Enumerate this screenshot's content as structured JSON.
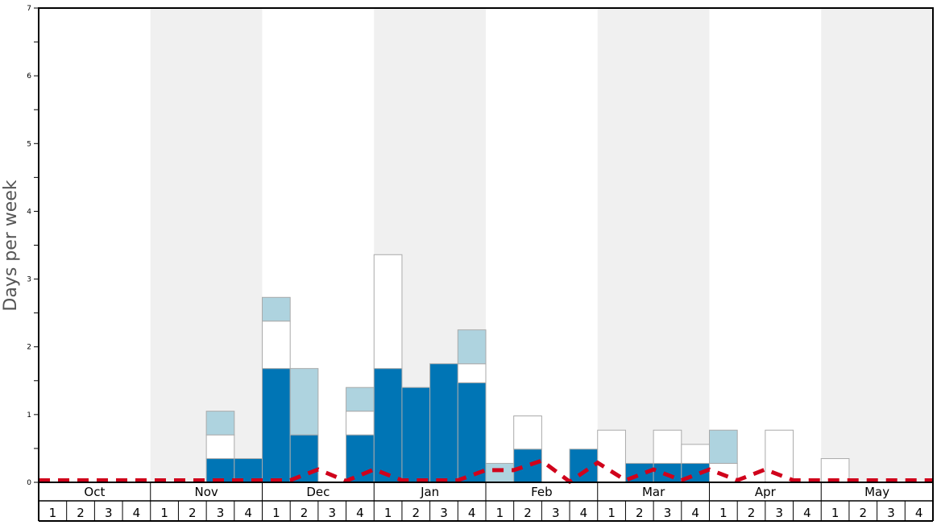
{
  "chart_data": {
    "type": "bar",
    "stacked": true,
    "ylabel": "Days per week",
    "ylim": [
      0,
      7
    ],
    "yticks": [
      "0",
      "1",
      "2",
      "3",
      "4",
      "5",
      "6",
      "7"
    ],
    "months": [
      "Oct",
      "Nov",
      "Dec",
      "Jan",
      "Feb",
      "Mar",
      "Apr",
      "May"
    ],
    "week_labels": [
      "1",
      "2",
      "3",
      "4"
    ],
    "colors": {
      "dark": "#0075b5",
      "white": "#ffffff",
      "light": "#aed3df",
      "line": "#d0021b",
      "shade": "#f0f0f0"
    },
    "series": [
      {
        "name": "dark",
        "values": [
          0,
          0,
          0,
          0,
          0,
          0,
          0.35,
          0.35,
          1.68,
          0.7,
          0,
          0.7,
          1.68,
          1.4,
          1.75,
          1.47,
          0,
          0.49,
          0,
          0.49,
          0,
          0.28,
          0.28,
          0.28,
          0,
          0,
          0,
          0,
          0,
          0,
          0,
          0
        ]
      },
      {
        "name": "white",
        "values": [
          0,
          0,
          0,
          0,
          0,
          0,
          0.35,
          0,
          0.7,
          0,
          0,
          0.35,
          1.68,
          0,
          0,
          0.28,
          0,
          0.49,
          0,
          0,
          0.77,
          0,
          0.49,
          0.28,
          0.28,
          0,
          0.77,
          0,
          0.35,
          0,
          0,
          0
        ]
      },
      {
        "name": "light",
        "values": [
          0,
          0,
          0,
          0,
          0,
          0,
          0.35,
          0,
          0.35,
          0.98,
          0,
          0.35,
          0,
          0,
          0,
          0.5,
          0.28,
          0,
          0,
          0,
          0,
          0,
          0,
          0,
          0.49,
          0,
          0,
          0,
          0,
          0,
          0,
          0
        ]
      }
    ],
    "line": {
      "name": "dashed",
      "values_at_week_boundaries": [
        0.03,
        0.03,
        0.03,
        0.03,
        0.03,
        0.03,
        0.03,
        0.03,
        0.03,
        0.03,
        0.19,
        0.02,
        0.19,
        0.03,
        0.03,
        0.03,
        0.18,
        0.18,
        0.32,
        0.01,
        0.29,
        0.03,
        0.19,
        0.03,
        0.19,
        0.03,
        0.19,
        0.03,
        0.03,
        0.03,
        0.03,
        0.03,
        0.03
      ]
    }
  }
}
